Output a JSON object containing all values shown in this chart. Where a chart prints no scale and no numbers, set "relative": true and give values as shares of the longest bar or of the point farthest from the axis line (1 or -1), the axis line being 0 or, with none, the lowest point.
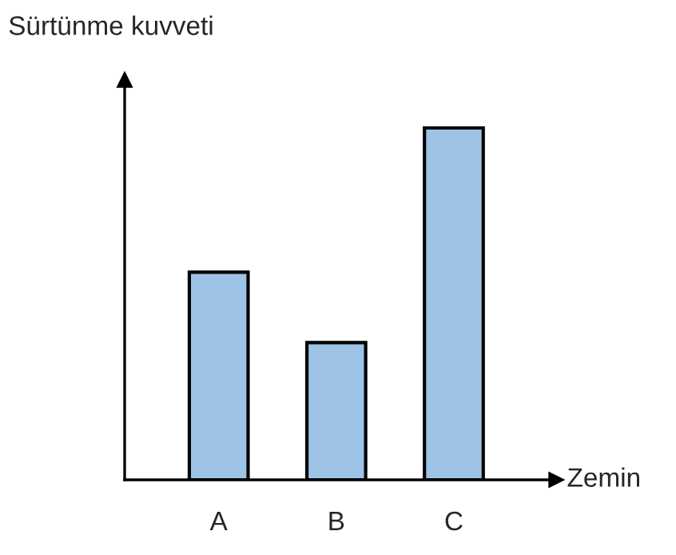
{
  "chart_data": {
    "type": "bar",
    "relative": true,
    "xlabel": "Zemin",
    "ylabel": "Sürtünme kuvveti",
    "categories": [
      "A",
      "B",
      "C"
    ],
    "values": [
      0.59,
      0.39,
      1
    ],
    "color": "#9dc3e6",
    "grid": false,
    "legend": false
  }
}
